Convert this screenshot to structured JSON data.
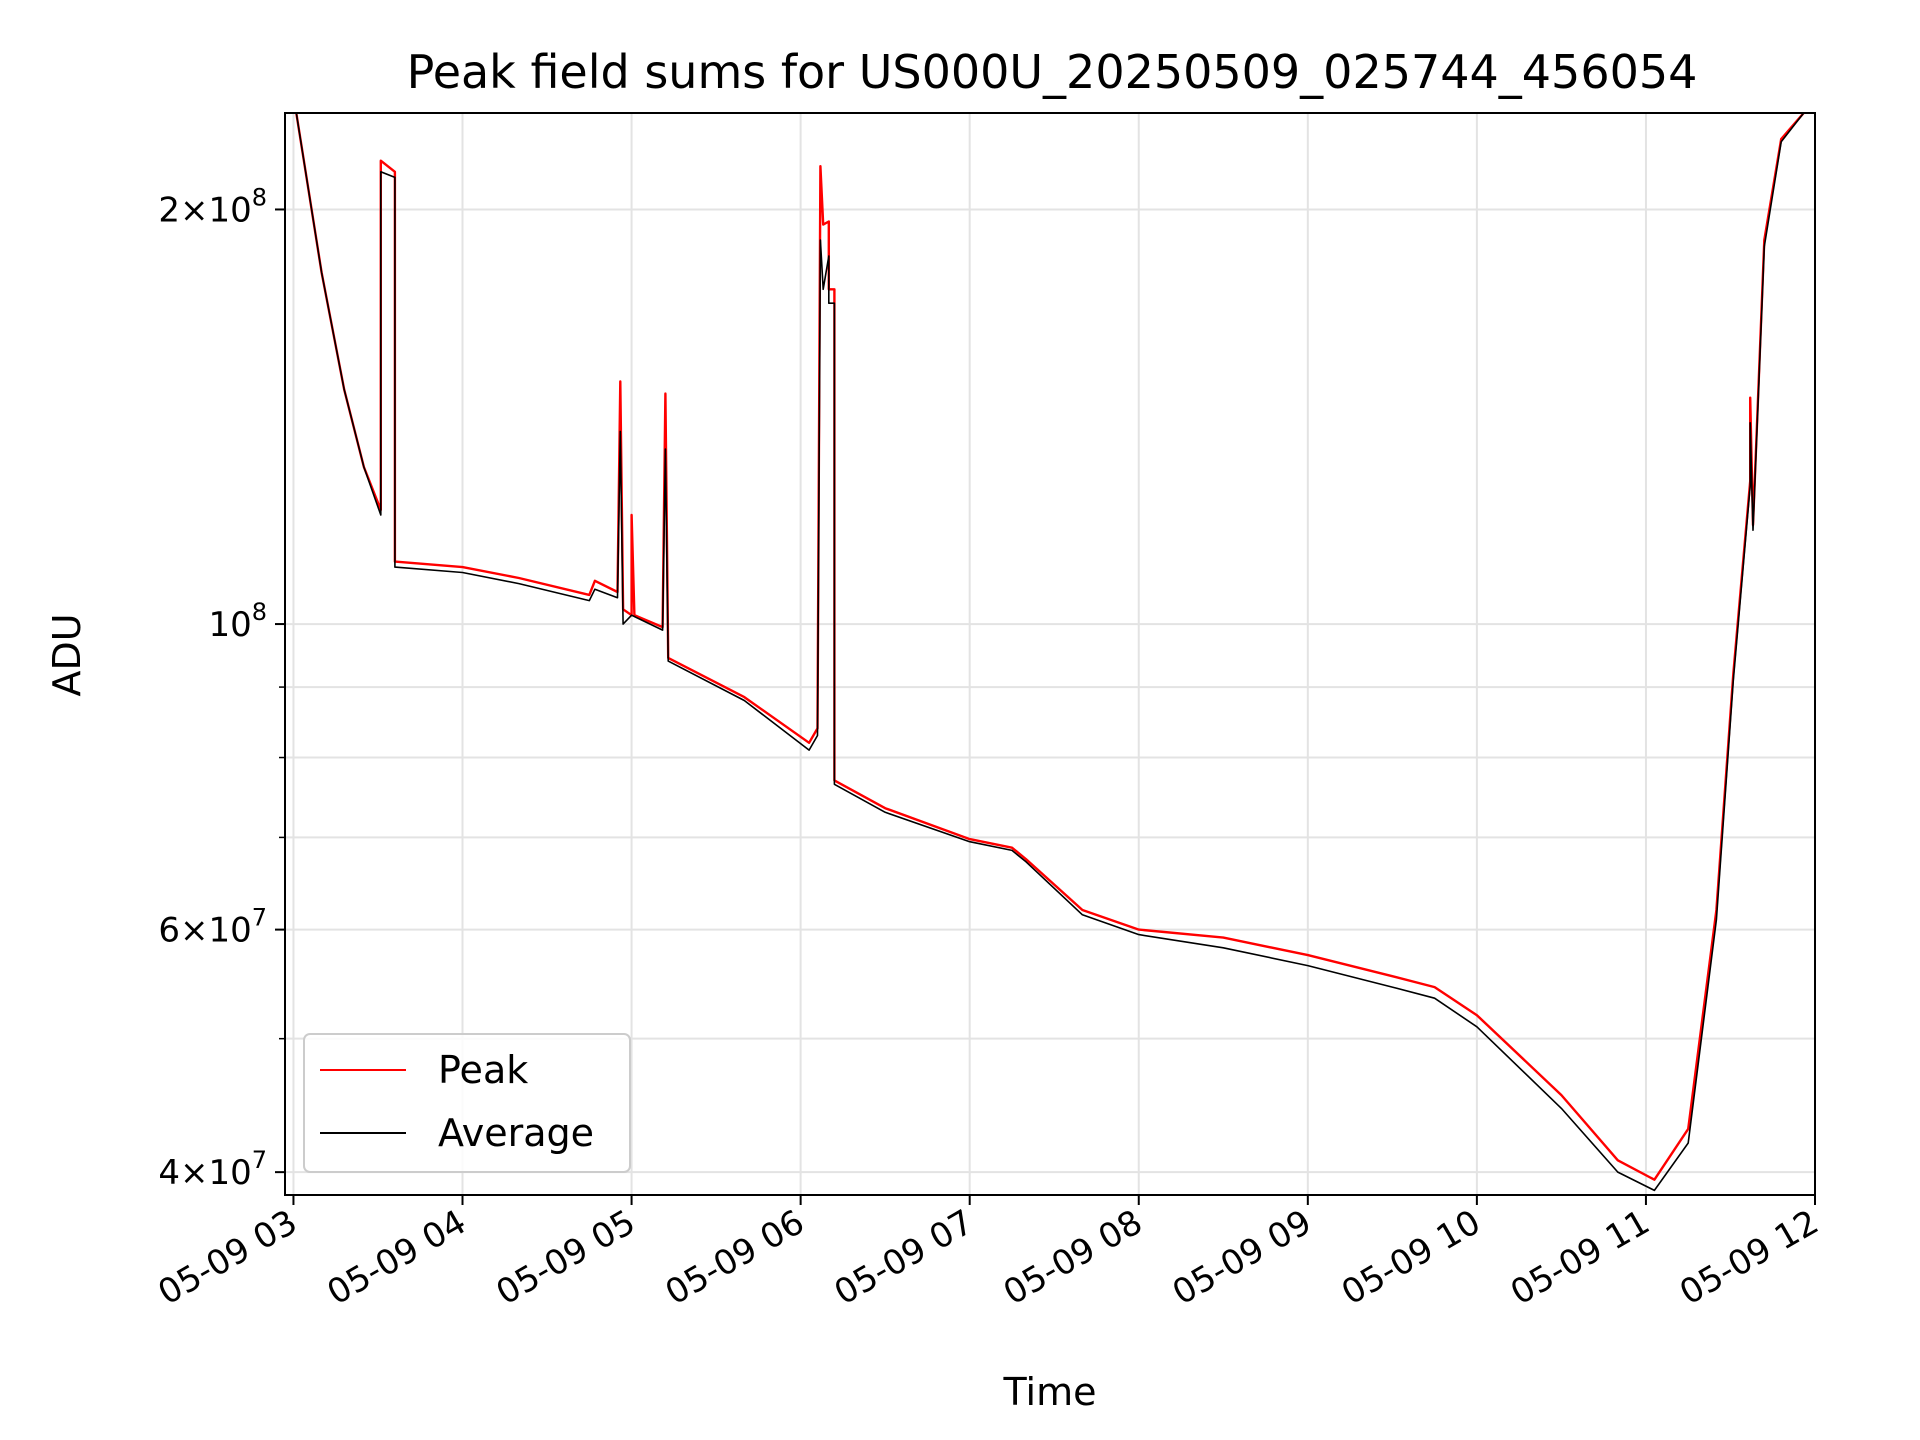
{
  "chart_data": {
    "type": "line",
    "title": "Peak field sums for US000U_20250509_025744_456054",
    "xlabel": "Time",
    "ylabel": "ADU",
    "yscale": "log",
    "grid": true,
    "legend_position": "lower-left",
    "xlim": [
      "2025-05-09 02:57",
      "2025-05-09 12:00"
    ],
    "ylim": [
      38500000,
      235000000
    ],
    "x_ticks": [
      "05-09 03",
      "05-09 04",
      "05-09 05",
      "05-09 06",
      "05-09 07",
      "05-09 08",
      "05-09 09",
      "05-09 10",
      "05-09 11",
      "05-09 12"
    ],
    "y_ticks": [
      {
        "value": 40000000,
        "mant": "4",
        "exp": "7"
      },
      {
        "value": 60000000,
        "mant": "6",
        "exp": "7"
      },
      {
        "value": 100000000,
        "mant": "",
        "exp": "8"
      },
      {
        "value": 200000000,
        "mant": "2",
        "exp": "8"
      }
    ],
    "y_minor_ticks": [
      50000000,
      70000000,
      80000000,
      90000000
    ],
    "series": [
      {
        "name": "Peak",
        "color": "#ff0000",
        "points": [
          [
            "2025-05-09 03:01",
            235000000
          ],
          [
            "2025-05-09 03:10",
            180000000
          ],
          [
            "2025-05-09 03:18",
            148000000
          ],
          [
            "2025-05-09 03:25",
            130000000
          ],
          [
            "2025-05-09 03:31",
            121000000
          ],
          [
            "2025-05-09 03:31",
            217000000
          ],
          [
            "2025-05-09 03:36",
            213000000
          ],
          [
            "2025-05-09 03:36",
            111000000
          ],
          [
            "2025-05-09 04:00",
            110000000
          ],
          [
            "2025-05-09 04:20",
            108000000
          ],
          [
            "2025-05-09 04:45",
            105000000
          ],
          [
            "2025-05-09 04:47",
            107500000
          ],
          [
            "2025-05-09 04:55",
            105500000
          ],
          [
            "2025-05-09 04:56",
            150000000
          ],
          [
            "2025-05-09 04:57",
            102500000
          ],
          [
            "2025-05-09 05:00",
            101500000
          ],
          [
            "2025-05-09 05:00",
            120000000
          ],
          [
            "2025-05-09 05:01",
            101500000
          ],
          [
            "2025-05-09 05:11",
            99500000
          ],
          [
            "2025-05-09 05:12",
            147000000
          ],
          [
            "2025-05-09 05:13",
            94500000
          ],
          [
            "2025-05-09 05:40",
            88500000
          ],
          [
            "2025-05-09 06:03",
            82000000
          ],
          [
            "2025-05-09 06:06",
            84000000
          ],
          [
            "2025-05-09 06:07",
            215000000
          ],
          [
            "2025-05-09 06:08",
            195000000
          ],
          [
            "2025-05-09 06:10",
            196000000
          ],
          [
            "2025-05-09 06:10",
            175000000
          ],
          [
            "2025-05-09 06:12",
            175000000
          ],
          [
            "2025-05-09 06:12",
            77000000
          ],
          [
            "2025-05-09 06:30",
            73500000
          ],
          [
            "2025-05-09 07:00",
            69800000
          ],
          [
            "2025-05-09 07:15",
            68800000
          ],
          [
            "2025-05-09 07:20",
            67500000
          ],
          [
            "2025-05-09 07:40",
            62000000
          ],
          [
            "2025-05-09 08:00",
            60000000
          ],
          [
            "2025-05-09 08:30",
            59200000
          ],
          [
            "2025-05-09 09:00",
            57500000
          ],
          [
            "2025-05-09 09:30",
            55500000
          ],
          [
            "2025-05-09 09:45",
            54500000
          ],
          [
            "2025-05-09 10:00",
            52000000
          ],
          [
            "2025-05-09 10:30",
            45500000
          ],
          [
            "2025-05-09 10:50",
            40800000
          ],
          [
            "2025-05-09 11:03",
            39500000
          ],
          [
            "2025-05-09 11:15",
            43000000
          ],
          [
            "2025-05-09 11:25",
            62000000
          ],
          [
            "2025-05-09 11:31",
            92000000
          ],
          [
            "2025-05-09 11:37",
            127000000
          ],
          [
            "2025-05-09 11:37",
            146000000
          ],
          [
            "2025-05-09 11:38",
            118000000
          ],
          [
            "2025-05-09 11:42",
            190000000
          ],
          [
            "2025-05-09 11:48",
            225000000
          ],
          [
            "2025-05-09 11:56",
            235000000
          ]
        ]
      },
      {
        "name": "Average",
        "color": "#000000",
        "points": [
          [
            "2025-05-09 03:01",
            235000000
          ],
          [
            "2025-05-09 03:10",
            180000000
          ],
          [
            "2025-05-09 03:18",
            148000000
          ],
          [
            "2025-05-09 03:25",
            130000000
          ],
          [
            "2025-05-09 03:31",
            120000000
          ],
          [
            "2025-05-09 03:31",
            213000000
          ],
          [
            "2025-05-09 03:36",
            211000000
          ],
          [
            "2025-05-09 03:36",
            110000000
          ],
          [
            "2025-05-09 04:00",
            109000000
          ],
          [
            "2025-05-09 04:20",
            107000000
          ],
          [
            "2025-05-09 04:45",
            104000000
          ],
          [
            "2025-05-09 04:47",
            106000000
          ],
          [
            "2025-05-09 04:55",
            104500000
          ],
          [
            "2025-05-09 04:56",
            138000000
          ],
          [
            "2025-05-09 04:57",
            100000000
          ],
          [
            "2025-05-09 05:00",
            101500000
          ],
          [
            "2025-05-09 05:11",
            99000000
          ],
          [
            "2025-05-09 05:12",
            134000000
          ],
          [
            "2025-05-09 05:13",
            94000000
          ],
          [
            "2025-05-09 05:40",
            88000000
          ],
          [
            "2025-05-09 06:03",
            81000000
          ],
          [
            "2025-05-09 06:06",
            83000000
          ],
          [
            "2025-05-09 06:07",
            190000000
          ],
          [
            "2025-05-09 06:08",
            175000000
          ],
          [
            "2025-05-09 06:10",
            185000000
          ],
          [
            "2025-05-09 06:10",
            171000000
          ],
          [
            "2025-05-09 06:12",
            171000000
          ],
          [
            "2025-05-09 06:12",
            76500000
          ],
          [
            "2025-05-09 06:30",
            73000000
          ],
          [
            "2025-05-09 07:00",
            69500000
          ],
          [
            "2025-05-09 07:15",
            68500000
          ],
          [
            "2025-05-09 07:20",
            67200000
          ],
          [
            "2025-05-09 07:40",
            61500000
          ],
          [
            "2025-05-09 08:00",
            59500000
          ],
          [
            "2025-05-09 08:30",
            58200000
          ],
          [
            "2025-05-09 09:00",
            56500000
          ],
          [
            "2025-05-09 09:30",
            54500000
          ],
          [
            "2025-05-09 09:45",
            53500000
          ],
          [
            "2025-05-09 10:00",
            51000000
          ],
          [
            "2025-05-09 10:30",
            44500000
          ],
          [
            "2025-05-09 10:50",
            40000000
          ],
          [
            "2025-05-09 11:03",
            38800000
          ],
          [
            "2025-05-09 11:15",
            42000000
          ],
          [
            "2025-05-09 11:25",
            61000000
          ],
          [
            "2025-05-09 11:31",
            91000000
          ],
          [
            "2025-05-09 11:37",
            126000000
          ],
          [
            "2025-05-09 11:37",
            140000000
          ],
          [
            "2025-05-09 11:38",
            117000000
          ],
          [
            "2025-05-09 11:42",
            188000000
          ],
          [
            "2025-05-09 11:48",
            224000000
          ],
          [
            "2025-05-09 11:56",
            235000000
          ]
        ]
      }
    ]
  }
}
